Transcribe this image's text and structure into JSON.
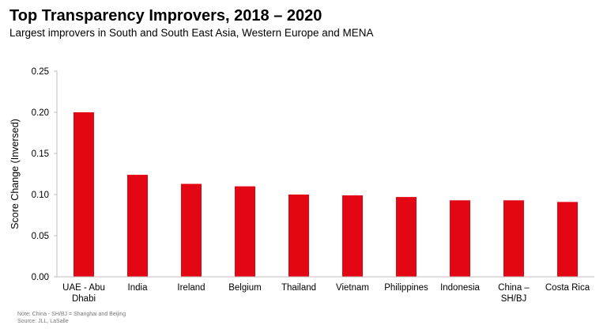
{
  "title": "Top Transparency Improvers, 2018 – 2020",
  "subtitle": "Largest improvers in South and South East Asia, Western Europe and MENA",
  "chart_data": {
    "type": "bar",
    "categories": [
      "UAE - Abu Dhabi",
      "India",
      "Ireland",
      "Belgium",
      "Thailand",
      "Vietnam",
      "Philippines",
      "Indonesia",
      "China – SH/BJ",
      "Costa Rica"
    ],
    "category_lines": [
      [
        "UAE - Abu",
        "Dhabi"
      ],
      [
        "India"
      ],
      [
        "Ireland"
      ],
      [
        "Belgium"
      ],
      [
        "Thailand"
      ],
      [
        "Vietnam"
      ],
      [
        "Philippines"
      ],
      [
        "Indonesia"
      ],
      [
        "China –",
        "SH/BJ"
      ],
      [
        "Costa Rica"
      ]
    ],
    "values": [
      0.2,
      0.124,
      0.113,
      0.11,
      0.1,
      0.099,
      0.097,
      0.093,
      0.093,
      0.091
    ],
    "ylabel": "Score Change (Inversed)",
    "ylim": [
      0,
      0.25
    ],
    "yticks": [
      "0.00",
      "0.05",
      "0.10",
      "0.15",
      "0.20",
      "0.25"
    ],
    "grid": false,
    "bar_color": "#e30613"
  },
  "notes": {
    "line1": "Note: China - SH/BJ = Shanghai and Beijing",
    "line2": "Source: JLL, LaSalle"
  }
}
